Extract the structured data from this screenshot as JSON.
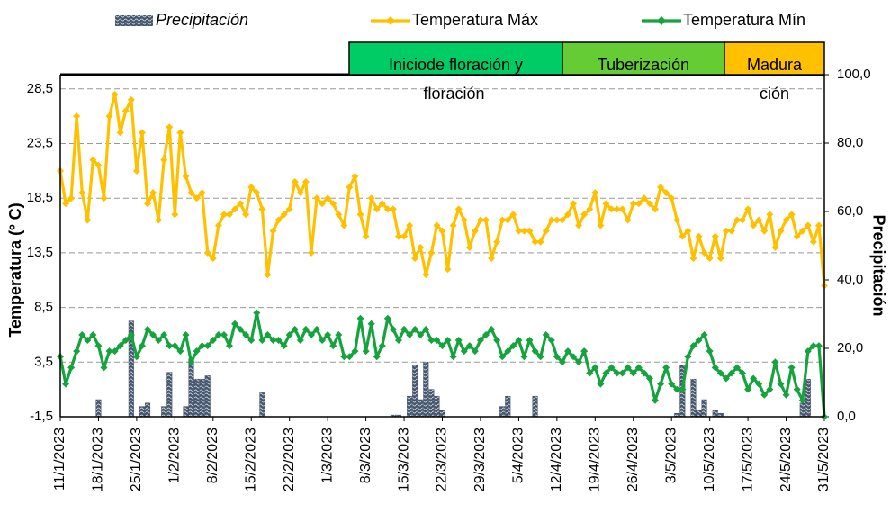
{
  "chart_data": {
    "type": "combo",
    "y_label": "Temperatura  (º C)",
    "y2_label": "Precipitación",
    "categories": [
      "11/1/2023",
      null,
      null,
      null,
      null,
      null,
      null,
      "18/1/2023",
      null,
      null,
      null,
      null,
      null,
      null,
      "25/1/2023",
      null,
      null,
      null,
      null,
      null,
      null,
      "1/2/2023",
      null,
      null,
      null,
      null,
      null,
      null,
      "8/2/2023",
      null,
      null,
      null,
      null,
      null,
      null,
      "15/2/2023",
      null,
      null,
      null,
      null,
      null,
      null,
      "22/2/2023",
      null,
      null,
      null,
      null,
      null,
      null,
      "1/3/2023",
      null,
      null,
      null,
      null,
      null,
      null,
      "8/3/2023",
      null,
      null,
      null,
      null,
      null,
      null,
      "15/3/2023",
      null,
      null,
      null,
      null,
      null,
      null,
      "22/3/2023",
      null,
      null,
      null,
      null,
      null,
      null,
      "29/3/2023",
      null,
      null,
      null,
      null,
      null,
      null,
      "5/4/2023",
      null,
      null,
      null,
      null,
      null,
      null,
      "12/4/2023",
      null,
      null,
      null,
      null,
      null,
      null,
      "19/4/2023",
      null,
      null,
      null,
      null,
      null,
      null,
      "26/4/2023",
      null,
      null,
      null,
      null,
      null,
      null,
      "3/5/2023",
      null,
      null,
      null,
      null,
      null,
      null,
      "10/5/2023",
      null,
      null,
      null,
      null,
      null,
      null,
      "17/5/2023",
      null,
      null,
      null,
      null,
      null,
      null,
      "24/5/2023",
      null,
      null,
      null,
      null,
      null,
      null,
      "31/5/2023"
    ],
    "series": [
      {
        "name": "Precipitación",
        "type": "bar",
        "axis": "y2",
        "color": "#44546a",
        "values": [
          0,
          0,
          0,
          0,
          0,
          0,
          0,
          5,
          0,
          0,
          0,
          0,
          0,
          28,
          0,
          3,
          4,
          0,
          0,
          3,
          13,
          0,
          0,
          3,
          17,
          11,
          11,
          12,
          0,
          0,
          0,
          0,
          0,
          0,
          0,
          0,
          0,
          7,
          0,
          0,
          0,
          0,
          0,
          0,
          0,
          0,
          0,
          0,
          0,
          0,
          0,
          0,
          0,
          0,
          0,
          0,
          0,
          0,
          0,
          0,
          0,
          0.5,
          0.5,
          0,
          6,
          15,
          5,
          16,
          8,
          6,
          2,
          0,
          0,
          0,
          0,
          0,
          0,
          0,
          0,
          0,
          0,
          3,
          6,
          0,
          0,
          0,
          0,
          6,
          0,
          0,
          0,
          0,
          0,
          0,
          0,
          0,
          0,
          0,
          0,
          0,
          0,
          0,
          0,
          0,
          0,
          0,
          0,
          0,
          0,
          0,
          0,
          0,
          0,
          1,
          15,
          0,
          11,
          2,
          5,
          0,
          2,
          1,
          0,
          0,
          0,
          0,
          0,
          0,
          0,
          0,
          0,
          0,
          0,
          0,
          0,
          0,
          4,
          11,
          0,
          0,
          0
        ]
      },
      {
        "name": "Temperatura Máx",
        "type": "line",
        "color": "#ffc000",
        "values": [
          21,
          18,
          18.5,
          26,
          19,
          16.5,
          22,
          21.5,
          18.5,
          26,
          28,
          24.5,
          26.5,
          27.5,
          21,
          24.5,
          18,
          19,
          16.5,
          22,
          25,
          17,
          24.5,
          20.5,
          19,
          18.5,
          19,
          13.5,
          13,
          16,
          17,
          17,
          17.5,
          18,
          17,
          19.5,
          19,
          17.5,
          11.5,
          15.5,
          16.5,
          17,
          17.5,
          20,
          19,
          20,
          13.5,
          18.5,
          18,
          18.5,
          18,
          17,
          16,
          19.5,
          20.5,
          17,
          15,
          18.5,
          17.5,
          18,
          17.5,
          17.5,
          15,
          15,
          16,
          13,
          14,
          11.5,
          13.5,
          16,
          15.5,
          12,
          16,
          17.5,
          16.5,
          14,
          15.5,
          16.5,
          16.5,
          13,
          14.5,
          16.5,
          16.5,
          17,
          15.5,
          15.5,
          15.5,
          14.5,
          14.5,
          15.5,
          16.5,
          16.5,
          16.5,
          17,
          18,
          16,
          17,
          17.5,
          19,
          16,
          18,
          17.5,
          17.5,
          17.5,
          16.5,
          18,
          18,
          18.5,
          18,
          17.5,
          19.5,
          19,
          18.5,
          16.5,
          15,
          15.5,
          13,
          15,
          13.5,
          13,
          15,
          13,
          15.5,
          15.5,
          16.5,
          16.5,
          17.5,
          16,
          16.5,
          15.5,
          17,
          14,
          15.5,
          16.5,
          17,
          15,
          15.5,
          16,
          14.5,
          16,
          10.5
        ]
      },
      {
        "name": "Temperatura Mín",
        "type": "line",
        "color": "#14a33c",
        "values": [
          4,
          1.5,
          3,
          4.5,
          6,
          5.5,
          6,
          5,
          3,
          4.5,
          4.5,
          5,
          5.5,
          6,
          4,
          5,
          6.5,
          6,
          5.5,
          6,
          5,
          5,
          4.5,
          6,
          3.5,
          4.5,
          5,
          5,
          5.5,
          6,
          6,
          5,
          7,
          6.5,
          6,
          5.5,
          8,
          5.5,
          6,
          5.5,
          5.5,
          5,
          6,
          6.5,
          5.5,
          6.5,
          6,
          6.5,
          5.5,
          6,
          5,
          6,
          4,
          4,
          4.5,
          7.5,
          4.5,
          7,
          4,
          5,
          7.5,
          6.5,
          5.5,
          6.5,
          6,
          6.5,
          6,
          6.5,
          5.5,
          5.5,
          5,
          5.5,
          4,
          5.5,
          4.5,
          5,
          4.5,
          5.5,
          6,
          6.5,
          5.5,
          4,
          4.5,
          5,
          5.5,
          4,
          5.5,
          4.5,
          4,
          6,
          5.5,
          4,
          3.5,
          4.5,
          4,
          3.5,
          4.5,
          2.5,
          3,
          1.5,
          2.5,
          3,
          2.5,
          2.5,
          3,
          2.5,
          3,
          2.5,
          2,
          0,
          1.5,
          3,
          1.5,
          1,
          1,
          4,
          5,
          5.5,
          6,
          4.5,
          3,
          2.5,
          2,
          2.5,
          3,
          2.5,
          1,
          2,
          1.5,
          0.5,
          1,
          3.5,
          1.5,
          0.5,
          3,
          1,
          0,
          4.5,
          5,
          5,
          -1.5
        ]
      }
    ],
    "ylim": [
      -1.5,
      29.8
    ],
    "yticks": [
      {
        "value": -1.5,
        "label": "-1,5"
      },
      {
        "value": 3.5,
        "label": "3,5"
      },
      {
        "value": 8.5,
        "label": "8,5"
      },
      {
        "value": 13.5,
        "label": "13,5"
      },
      {
        "value": 18.5,
        "label": "18,5"
      },
      {
        "value": 23.5,
        "label": "23,5"
      },
      {
        "value": 28.5,
        "label": "28,5"
      }
    ],
    "y2lim": [
      0,
      100
    ],
    "y2ticks": [
      {
        "value": 0,
        "label": "0,0"
      },
      {
        "value": 20,
        "label": "20,0"
      },
      {
        "value": 40,
        "label": "40,0"
      },
      {
        "value": 60,
        "label": "60,0"
      },
      {
        "value": 80,
        "label": "80,0"
      },
      {
        "value": 100,
        "label": "100,0"
      }
    ],
    "grid": true,
    "phases": [
      {
        "lines": [
          "Iniciode floración y",
          "floración"
        ],
        "color": "#00cc66"
      },
      {
        "lines": [
          "Tuberización"
        ],
        "color": "#66cc33"
      },
      {
        "lines": [
          "Madura",
          "ción"
        ],
        "color": "#ffc000"
      }
    ]
  }
}
